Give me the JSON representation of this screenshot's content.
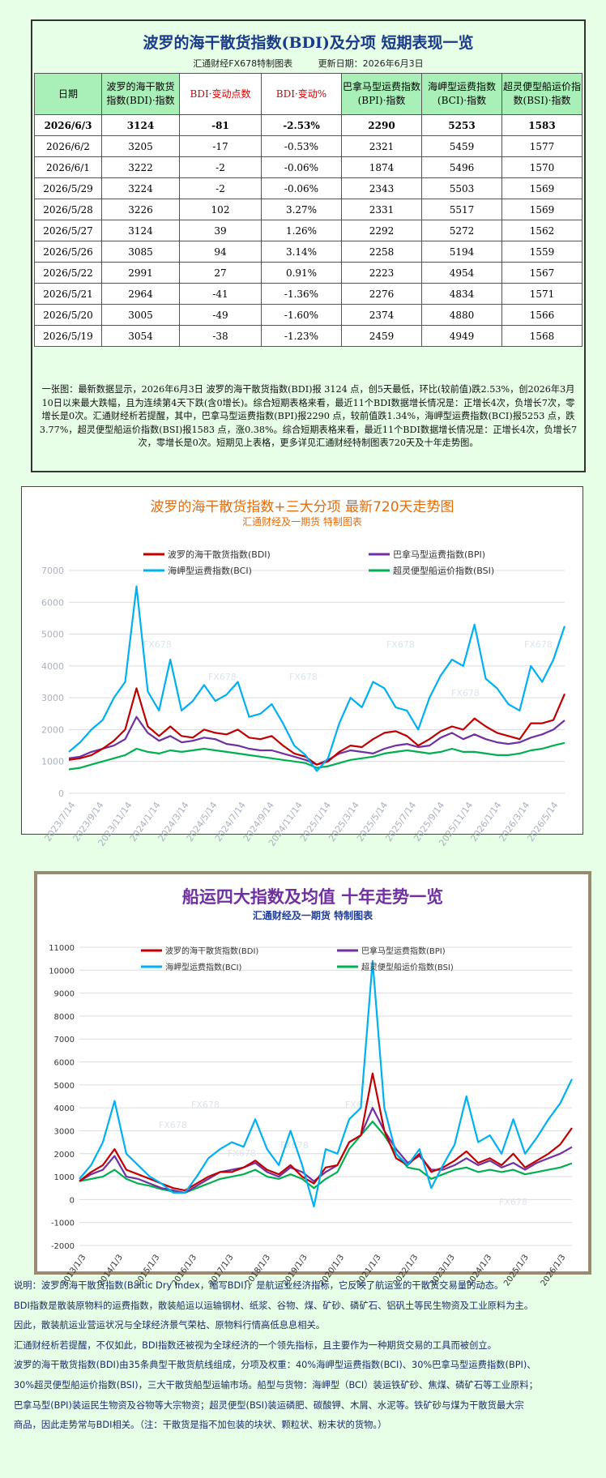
{
  "table": {
    "title": "波罗的海干散货指数(BDI)及分项  短期表现一览",
    "subtitle_left": "汇通财经FX678特制图表",
    "subtitle_right": "更新日期：2026年6月3日",
    "headers": [
      "日期",
      "波罗的海干散货指数(BDI)·指数",
      "BDI·变动点数",
      "BDI·变动%",
      "巴拿马型运费指数(BPI)·指数",
      "海岬型运费指数(BCI)·指数",
      "超灵便型船运价指数(BSI)·指数"
    ],
    "rows": [
      [
        "2026/6/3",
        "3124",
        "-81",
        "-2.53%",
        "2290",
        "5253",
        "1583"
      ],
      [
        "2026/6/2",
        "3205",
        "-17",
        "-0.53%",
        "2321",
        "5459",
        "1577"
      ],
      [
        "2026/6/1",
        "3222",
        "-2",
        "-0.06%",
        "1874",
        "5496",
        "1570"
      ],
      [
        "2026/5/29",
        "3224",
        "-2",
        "-0.06%",
        "2343",
        "5503",
        "1569"
      ],
      [
        "2026/5/28",
        "3226",
        "102",
        "3.27%",
        "2331",
        "5517",
        "1569"
      ],
      [
        "2026/5/27",
        "3124",
        "39",
        "1.26%",
        "2292",
        "5272",
        "1562"
      ],
      [
        "2026/5/26",
        "3085",
        "94",
        "3.14%",
        "2258",
        "5194",
        "1559"
      ],
      [
        "2026/5/22",
        "2991",
        "27",
        "0.91%",
        "2223",
        "4954",
        "1567"
      ],
      [
        "2026/5/21",
        "2964",
        "-41",
        "-1.36%",
        "2276",
        "4834",
        "1571"
      ],
      [
        "2026/5/20",
        "3005",
        "-49",
        "-1.60%",
        "2374",
        "4880",
        "1566"
      ],
      [
        "2026/5/19",
        "3054",
        "-38",
        "-1.23%",
        "2459",
        "4949",
        "1568"
      ]
    ],
    "description": "一张图：最新数据显示，2026年6月3日 波罗的海干散货指数(BDI)报 3124 点，创5天最低，环比(较前值)跌2.53%，创2026年3月10日以来最大跌幅，且为连续第4天下跌(含0增长)。综合短期表格来看，最近11个BDI数据增长情况是：正增长4次，负增长7次，零增长是0次。汇通财经析若提醒，其中，巴拿马型运费指数(BPI)报2290 点，较前值跌1.34%，海岬型运费指数(BCI)报5253 点，跌3.77%，超灵便型船运价指数(BSI)报1583 点，涨0.38%。综合短期表格来看，最近11个BDI数据增长情况是：正增长4次，负增长7次，零增长是0次。短期见上表格，更多详见汇通财经特制图表720天及十年走势图。"
  },
  "chart1": {
    "title": "波罗的海干散货指数+三大分项  最新720天走势图",
    "subtitle": "汇通财经及一期货  特制图表",
    "watermark": "FX678"
  },
  "chart2": {
    "title": "船运四大指数及均值 十年走势一览",
    "subtitle": "汇通财经及一期货 特制图表",
    "watermark": "FX678"
  },
  "footer": [
    "说明：波罗的海干散货指数(Baltic Dry Index，缩写BDI)，是航运业经济指标，它反映了航运业的干散货交易量的动态。",
    "BDI指数是散装原物料的运费指数，散装船运以运输钢材、纸浆、谷物、煤、矿砂、磷矿石、铝矾土等民生物资及工业原料为主。",
    "因此，散装航运业营运状况与全球经济景气荣枯、原物料行情高低息息相关。",
    "汇通财经析若提醒，不仅如此，BDI指数还被视为全球经济的一个领先指标，且主要作为一种期货交易的工具而被创立。",
    "波罗的海干散货指数(BDI)由35条典型干散货航线组成，分项及权重：40%海岬型运费指数(BCI)、30%巴拿马型运费指数(BPI)、",
    "30%超灵便型船运价指数(BSI)，三大干散货船型运输市场。船型与货物：海岬型（BCI）装运铁矿砂、焦煤、磷矿石等工业原料；",
    "巴拿马型(BPI)装运民生物资及谷物等大宗物资；超灵便型(BSI)装运磷肥、碳酸钾、木屑、水泥等。铁矿砂与煤为干散货最大宗",
    "商品，因此走势常与BDI相关。（注：干散货是指不加包装的块状、颗粒状、粉末状的货物。）"
  ],
  "chart_data": [
    {
      "type": "line",
      "title": "波罗的海干散货指数+三大分项  最新720天走势图",
      "subtitle": "汇通财经及一期货  特制图表",
      "ylim": [
        0,
        7000
      ],
      "yticks": [
        0,
        1000,
        2000,
        3000,
        4000,
        5000,
        6000,
        7000
      ],
      "xticks": [
        "2023/7/14",
        "2023/9/14",
        "2023/11/14",
        "2024/1/14",
        "2024/3/14",
        "2024/5/14",
        "2024/7/14",
        "2024/9/14",
        "2024/11/14",
        "2025/1/14",
        "2025/3/14",
        "2025/5/14",
        "2025/7/14",
        "2025/9/14",
        "2025/11/14",
        "2026/1/14",
        "2026/3/14",
        "2026/5/14"
      ],
      "legend_position": "top",
      "grid": true,
      "colors": {
        "BDI": "#c00000",
        "BPI": "#7030a0",
        "BCI": "#00b0f0",
        "BSI": "#00b050"
      },
      "series": [
        {
          "name": "波罗的海干散货指数(BDI)",
          "key": "BDI",
          "values": [
            1050,
            1100,
            1200,
            1400,
            1650,
            2000,
            3300,
            2100,
            1800,
            2100,
            1800,
            1750,
            2000,
            1900,
            1850,
            2000,
            1750,
            1700,
            1800,
            1500,
            1250,
            1150,
            900,
            1000,
            1300,
            1500,
            1450,
            1700,
            1900,
            1950,
            1800,
            1500,
            1700,
            1950,
            2100,
            2000,
            2350,
            2100,
            1900,
            1800,
            1700,
            2200,
            2200,
            2300,
            3124
          ]
        },
        {
          "name": "巴拿马型运费指数(BPI)",
          "key": "BPI",
          "values": [
            1100,
            1150,
            1300,
            1400,
            1500,
            1700,
            2400,
            1900,
            1650,
            1800,
            1600,
            1650,
            1750,
            1700,
            1550,
            1500,
            1400,
            1350,
            1350,
            1250,
            1150,
            1050,
            900,
            1050,
            1250,
            1350,
            1300,
            1250,
            1400,
            1500,
            1550,
            1450,
            1500,
            1750,
            1900,
            1700,
            1850,
            1700,
            1600,
            1550,
            1600,
            1750,
            1850,
            2000,
            2290
          ]
        },
        {
          "name": "海岬型运费指数(BCI)",
          "key": "BCI",
          "values": [
            1300,
            1600,
            2000,
            2300,
            3000,
            3500,
            6500,
            3200,
            2600,
            4200,
            2600,
            2900,
            3400,
            2900,
            3100,
            3500,
            2400,
            2500,
            2800,
            2200,
            1500,
            1200,
            700,
            1100,
            2200,
            3000,
            2700,
            3500,
            3300,
            2700,
            2600,
            2000,
            3000,
            3700,
            4200,
            4000,
            5300,
            3600,
            3300,
            2800,
            2600,
            4000,
            3500,
            4200,
            5253
          ]
        },
        {
          "name": "超灵便型船运价指数(BSI)",
          "key": "BSI",
          "values": [
            750,
            800,
            900,
            1000,
            1100,
            1200,
            1400,
            1300,
            1250,
            1350,
            1300,
            1350,
            1400,
            1350,
            1300,
            1250,
            1200,
            1150,
            1100,
            1050,
            1000,
            950,
            800,
            850,
            950,
            1050,
            1100,
            1150,
            1250,
            1300,
            1350,
            1300,
            1250,
            1300,
            1400,
            1300,
            1300,
            1250,
            1200,
            1200,
            1250,
            1350,
            1400,
            1500,
            1583
          ]
        }
      ]
    },
    {
      "type": "line",
      "title": "船运四大指数及均值 十年走势一览",
      "subtitle": "汇通财经及一期货 特制图表",
      "ylim": [
        -2000,
        11000
      ],
      "yticks": [
        -2000,
        -1000,
        0,
        1000,
        2000,
        3000,
        4000,
        5000,
        6000,
        7000,
        8000,
        9000,
        10000,
        11000
      ],
      "xticks": [
        "2013/1/3",
        "2014/1/3",
        "2015/1/3",
        "2016/1/3",
        "2017/1/3",
        "2018/1/3",
        "2019/1/3",
        "2020/1/3",
        "2021/1/3",
        "2022/1/3",
        "2023/1/3",
        "2024/1/3",
        "2025/1/3",
        "2026/1/3"
      ],
      "legend_position": "top",
      "grid": true,
      "colors": {
        "BDI": "#c00000",
        "BPI": "#7030a0",
        "BCI": "#00b0f0",
        "BSI": "#00b050"
      },
      "series": [
        {
          "name": "波罗的海干散货指数(BDI)",
          "key": "BDI",
          "values": [
            800,
            1200,
            1500,
            2200,
            1300,
            1100,
            900,
            700,
            500,
            400,
            700,
            1000,
            1200,
            1200,
            1400,
            1700,
            1300,
            1100,
            1500,
            1000,
            700,
            1400,
            1500,
            2500,
            2800,
            5500,
            3000,
            1800,
            1500,
            2000,
            1200,
            1400,
            1700,
            2100,
            1600,
            1800,
            1500,
            2000,
            1400,
            1700,
            2000,
            2400,
            3124
          ]
        },
        {
          "name": "巴拿马型运费指数(BPI)",
          "key": "BPI",
          "values": [
            800,
            1100,
            1300,
            1900,
            1000,
            900,
            700,
            500,
            400,
            300,
            600,
            900,
            1200,
            1300,
            1400,
            1600,
            1200,
            1000,
            1400,
            1200,
            800,
            1200,
            1500,
            2500,
            2800,
            4000,
            3000,
            2200,
            1600,
            1900,
            1300,
            1300,
            1500,
            1800,
            1500,
            1700,
            1400,
            1600,
            1300,
            1600,
            1800,
            2000,
            2290
          ]
        },
        {
          "name": "海岬型运费指数(BCI)",
          "key": "BCI",
          "values": [
            900,
            1500,
            2500,
            4300,
            2000,
            1500,
            1000,
            700,
            300,
            300,
            1000,
            1800,
            2200,
            2500,
            2300,
            3500,
            2200,
            1500,
            3000,
            1500,
            -300,
            2200,
            2000,
            3500,
            4000,
            10400,
            4000,
            2000,
            1500,
            2200,
            500,
            1500,
            2400,
            4500,
            2500,
            2800,
            2000,
            3500,
            2000,
            2700,
            3500,
            4200,
            5253
          ]
        },
        {
          "name": "超灵便型船运价指数(BSI)",
          "key": "BSI",
          "values": [
            800,
            900,
            1000,
            1300,
            900,
            700,
            600,
            450,
            350,
            300,
            500,
            700,
            900,
            1000,
            1100,
            1300,
            1000,
            900,
            1100,
            900,
            500,
            900,
            1200,
            2200,
            2800,
            3400,
            2800,
            2000,
            1400,
            1300,
            900,
            1100,
            1300,
            1400,
            1200,
            1300,
            1200,
            1300,
            1100,
            1200,
            1300,
            1400,
            1583
          ]
        }
      ]
    }
  ]
}
